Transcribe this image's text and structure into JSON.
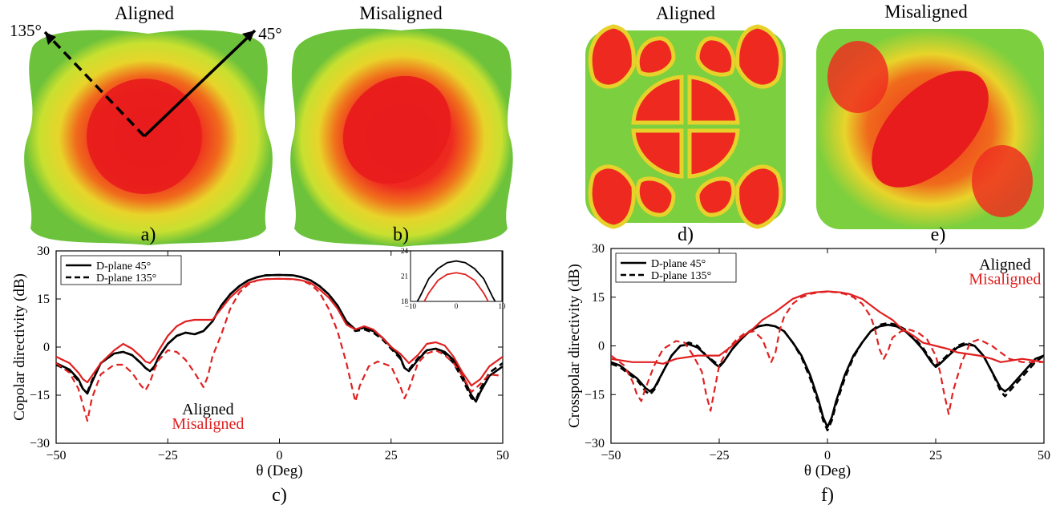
{
  "patterns": [
    {
      "title": "Aligned",
      "label": "a)",
      "annotations": {
        "angle1": "135°",
        "angle2": "45°"
      }
    },
    {
      "title": "Misaligned",
      "label": "b)"
    },
    {
      "title": "Aligned",
      "label": "d)"
    },
    {
      "title": "Misaligned",
      "label": "e)"
    }
  ],
  "colors": {
    "aligned": "#000000",
    "misaligned": "#e02020",
    "pattern_green": "#6cc23a",
    "pattern_yellow": "#e8e830",
    "pattern_red": "#ee2020"
  },
  "chart_data": [
    {
      "type": "line",
      "panel_label": "c)",
      "xlabel": "θ (Deg)",
      "ylabel": "Copolar directivity (dB)",
      "xlim": [
        -50,
        50
      ],
      "ylim": [
        -30,
        30
      ],
      "xticks": [
        -50,
        -25,
        0,
        25,
        50
      ],
      "yticks": [
        30,
        15,
        0,
        -15,
        -30
      ],
      "tick_labels_x": [
        "−50",
        "−25",
        "0",
        "25",
        "50"
      ],
      "tick_labels_y": [
        "30",
        "15",
        "0",
        "−15",
        "−30"
      ],
      "legend": {
        "placement": "top-left",
        "entries": [
          "D-plane 45°",
          "D-plane 135°"
        ]
      },
      "annotations": [
        "Aligned",
        "Misaligned"
      ],
      "series": [
        {
          "name": "D-plane 45°",
          "group": "Aligned",
          "style": "solid",
          "x": [
            -50,
            -47,
            -45,
            -44,
            -43,
            -42,
            -40,
            -37,
            -35,
            -33,
            -31,
            -30,
            -29,
            -28,
            -27,
            -25,
            -23,
            -21,
            -19,
            -17,
            -15,
            -13,
            -11,
            -9,
            -7,
            -5,
            -3,
            0,
            3,
            5,
            7,
            9,
            11,
            13,
            15,
            17,
            19,
            21,
            23,
            25,
            27,
            28,
            29,
            31,
            33,
            35,
            37,
            39,
            41,
            43,
            44,
            45,
            47,
            50
          ],
          "y": [
            -5,
            -7,
            -10,
            -13,
            -14.5,
            -11,
            -5,
            -2,
            -1.5,
            -2.5,
            -5,
            -6.5,
            -7.5,
            -6,
            -3,
            1,
            3.5,
            4.5,
            4,
            5,
            8,
            13,
            16.5,
            19,
            20.8,
            21.8,
            22.4,
            22.5,
            22.4,
            21.8,
            20.8,
            19,
            16.5,
            13,
            8,
            5.5,
            6,
            5,
            3,
            0,
            -3,
            -6.5,
            -7.5,
            -4,
            -1,
            -0.5,
            -1.5,
            -4,
            -9,
            -15,
            -17,
            -14,
            -9,
            -6
          ]
        },
        {
          "name": "D-plane 135°",
          "group": "Aligned",
          "style": "dashed",
          "x": [
            -50,
            -47,
            -45,
            -44,
            -43,
            -42,
            -40,
            -37,
            -35,
            -33,
            -31,
            -30,
            -29,
            -28,
            -27,
            -25,
            -23,
            -21,
            -19,
            -17,
            -15,
            -13,
            -11,
            -9,
            -7,
            -5,
            -3,
            0,
            3,
            5,
            7,
            9,
            11,
            13,
            15,
            17,
            19,
            21,
            23,
            25,
            27,
            28,
            29,
            31,
            33,
            35,
            37,
            39,
            41,
            43,
            44,
            45,
            47,
            50
          ],
          "y": [
            -5.5,
            -7.5,
            -10.5,
            -13,
            -14,
            -10.5,
            -5,
            -2,
            -1.5,
            -2.5,
            -5,
            -6.5,
            -7.5,
            -6.5,
            -3,
            1,
            3.5,
            4.5,
            4,
            5,
            8,
            13,
            16.5,
            19,
            20.8,
            21.8,
            22.4,
            22.5,
            22.4,
            21.8,
            20.8,
            19,
            16.5,
            13,
            7.5,
            5,
            5.5,
            4.5,
            2.5,
            -0.5,
            -3.5,
            -6.5,
            -7,
            -3.5,
            -1,
            -0.5,
            -2,
            -5,
            -10,
            -16,
            -16.5,
            -13,
            -8,
            -5
          ]
        },
        {
          "name": "D-plane 45°",
          "group": "Misaligned",
          "style": "solid",
          "x": [
            -50,
            -47,
            -45,
            -44,
            -43,
            -42,
            -40,
            -37,
            -35,
            -33,
            -31,
            -30,
            -29,
            -28,
            -27,
            -25,
            -23,
            -21,
            -19,
            -17,
            -15,
            -13,
            -11,
            -9,
            -7,
            -5,
            -3,
            0,
            3,
            5,
            7,
            9,
            11,
            13,
            15,
            17,
            19,
            21,
            23,
            25,
            27,
            28,
            29,
            31,
            33,
            35,
            37,
            39,
            41,
            43,
            45,
            47,
            50
          ],
          "y": [
            -3,
            -5,
            -8,
            -10,
            -11,
            -9,
            -5,
            -1,
            1,
            -0.5,
            -3,
            -4.5,
            -5,
            -3.5,
            -1,
            3.5,
            6.5,
            8,
            8.5,
            8.5,
            8.5,
            12,
            15.5,
            18,
            20,
            20.8,
            21.2,
            21.3,
            21.2,
            20.8,
            20,
            18,
            15.5,
            12,
            7,
            5.5,
            6.5,
            5.5,
            3,
            0,
            -2,
            -3.5,
            -5,
            -2.5,
            1,
            1.5,
            0.5,
            -3,
            -8,
            -12,
            -10,
            -6,
            -3
          ]
        },
        {
          "name": "D-plane 135°",
          "group": "Misaligned",
          "style": "dashed",
          "x": [
            -50,
            -47,
            -45,
            -44,
            -43,
            -42,
            -40,
            -37,
            -35,
            -33,
            -31,
            -30,
            -29,
            -28,
            -27,
            -25,
            -23,
            -21,
            -19,
            -17,
            -16,
            -15,
            -13,
            -11,
            -9,
            -7,
            -5,
            -3,
            0,
            3,
            5,
            7,
            9,
            11,
            13,
            15,
            16,
            17,
            18,
            20,
            22,
            25,
            27,
            28,
            29,
            31,
            33,
            35,
            37,
            39,
            41,
            43,
            45,
            47,
            50
          ],
          "y": [
            -5,
            -8,
            -13,
            -18,
            -23,
            -16,
            -8.5,
            -5.5,
            -5.5,
            -8,
            -12,
            -13.5,
            -11,
            -7,
            -4,
            -1,
            -1.5,
            -4,
            -8,
            -12.5,
            -9,
            -3,
            4,
            12,
            17,
            19.5,
            20.8,
            21.2,
            21.3,
            21.2,
            20.8,
            19.5,
            17,
            12,
            5,
            -5,
            -11,
            -17,
            -12,
            -6,
            -4.5,
            -6,
            -12,
            -16,
            -13,
            -5,
            -2,
            -1,
            -2.5,
            -5,
            -9,
            -14,
            -11.5,
            -8.5,
            -9
          ]
        }
      ],
      "inset": {
        "xlim": [
          -10,
          10
        ],
        "ylim": [
          18,
          24
        ],
        "xticks": [
          "−10",
          "0",
          "10"
        ],
        "yticks": [
          "24",
          "21",
          "18"
        ],
        "series": [
          {
            "group": "Aligned",
            "x": [
              -8.5,
              -8,
              -6,
              -4,
              -2,
              0,
              2,
              4,
              6,
              8,
              8.5
            ],
            "y": [
              18,
              18.5,
              20.7,
              21.9,
              22.6,
              22.8,
              22.6,
              21.9,
              20.7,
              18.5,
              18
            ]
          },
          {
            "group": "Misaligned",
            "x": [
              -7,
              -6,
              -4,
              -2,
              0,
              2,
              4,
              6,
              7
            ],
            "y": [
              18,
              19,
              20.5,
              21.2,
              21.4,
              21.2,
              20.5,
              19,
              18
            ]
          }
        ]
      }
    },
    {
      "type": "line",
      "panel_label": "f)",
      "xlabel": "θ (Deg)",
      "ylabel": "Crosspolar directivity (dB)",
      "xlim": [
        -50,
        50
      ],
      "ylim": [
        -30,
        30
      ],
      "xticks": [
        -50,
        -25,
        0,
        25,
        50
      ],
      "yticks": [
        30,
        15,
        0,
        -15,
        -30
      ],
      "tick_labels_x": [
        "−50",
        "−25",
        "0",
        "25",
        "50"
      ],
      "tick_labels_y": [
        "30",
        "15",
        "0",
        "−15",
        "−30"
      ],
      "legend": {
        "placement": "top-left",
        "entries": [
          "D-plane 45°",
          "D-plane 135°"
        ]
      },
      "annotations": [
        "Aligned",
        "Misaligned"
      ],
      "series": [
        {
          "name": "D-plane 45°",
          "group": "Aligned",
          "style": "solid",
          "x": [
            -50,
            -48,
            -46,
            -44,
            -42,
            -41,
            -40,
            -38,
            -36,
            -34,
            -32,
            -30,
            -28,
            -26,
            -25,
            -24,
            -22,
            -20,
            -18,
            -16,
            -14,
            -12,
            -10,
            -8,
            -6,
            -4,
            -2,
            -1,
            0,
            1,
            2,
            4,
            6,
            8,
            10,
            12,
            14,
            16,
            18,
            20,
            22,
            24,
            25,
            26,
            28,
            30,
            32,
            34,
            36,
            38,
            40,
            41,
            42,
            44,
            46,
            48,
            50
          ],
          "y": [
            -5,
            -6,
            -8,
            -10,
            -13,
            -14,
            -13,
            -8,
            -3,
            0,
            0.5,
            -0.5,
            -3,
            -5.5,
            -6.5,
            -5,
            -1,
            2,
            4.5,
            6,
            6.5,
            6,
            4.5,
            1,
            -3,
            -9,
            -17,
            -22,
            -25,
            -22,
            -17,
            -9,
            -3,
            1,
            4.5,
            6,
            6.5,
            6,
            4.5,
            2,
            -1,
            -5,
            -6.5,
            -5.5,
            -3,
            -0.5,
            0.5,
            0,
            -3,
            -8,
            -13,
            -14,
            -13,
            -10,
            -7,
            -4,
            -3
          ]
        },
        {
          "name": "D-plane 135°",
          "group": "Aligned",
          "style": "dashed",
          "x": [
            -50,
            -48,
            -46,
            -44,
            -42,
            -41,
            -40,
            -38,
            -36,
            -34,
            -32,
            -30,
            -28,
            -26,
            -25,
            -24,
            -22,
            -20,
            -18,
            -16,
            -14,
            -12,
            -10,
            -8,
            -6,
            -4,
            -2,
            -1,
            0,
            1,
            2,
            4,
            6,
            8,
            10,
            12,
            14,
            16,
            18,
            20,
            22,
            24,
            25,
            26,
            28,
            30,
            32,
            34,
            36,
            38,
            40,
            41,
            42,
            44,
            46,
            48,
            50
          ],
          "y": [
            -5.5,
            -6.5,
            -8.5,
            -10.5,
            -14,
            -15,
            -13.5,
            -8,
            -3,
            0,
            1,
            0,
            -3,
            -5,
            -6,
            -5,
            -1,
            2,
            4.5,
            6,
            6.5,
            6,
            4.5,
            1,
            -3.5,
            -10,
            -18,
            -23,
            -26,
            -23,
            -18,
            -10,
            -3.5,
            1,
            4.5,
            6.5,
            7,
            6.5,
            5,
            2.5,
            -0.5,
            -4.5,
            -6,
            -5,
            -2.5,
            0,
            1,
            0,
            -3,
            -8,
            -14,
            -15.5,
            -14,
            -11,
            -8,
            -5,
            -3
          ]
        },
        {
          "name": "D-plane 45°",
          "group": "Misaligned",
          "style": "solid",
          "x": [
            -50,
            -45,
            -40,
            -38,
            -35,
            -30,
            -25,
            -22,
            -20,
            -17,
            -15,
            -12,
            -10,
            -8,
            -5,
            -3,
            0,
            3,
            5,
            8,
            10,
            12,
            15,
            17,
            20,
            22,
            25,
            28,
            30,
            35,
            38,
            40,
            45,
            50
          ],
          "y": [
            -4,
            -5,
            -5,
            -5.5,
            -4,
            -3,
            -3,
            0,
            2.5,
            5.5,
            8,
            10.5,
            12.5,
            14.5,
            16,
            16.5,
            16.8,
            16.5,
            16,
            14.5,
            12.5,
            10.5,
            8,
            5.5,
            3,
            1,
            0,
            -1,
            -2,
            -3,
            -4,
            -5,
            -4,
            -5
          ]
        },
        {
          "name": "D-plane 135°",
          "group": "Misaligned",
          "style": "dashed",
          "x": [
            -50,
            -47,
            -45,
            -44,
            -43,
            -42,
            -40,
            -38,
            -35,
            -33,
            -31,
            -29,
            -28,
            -27,
            -26,
            -25,
            -23,
            -21,
            -19,
            -17,
            -15,
            -14,
            -13,
            -12,
            -11,
            -10,
            -8,
            -6,
            -4,
            -2,
            0,
            2,
            4,
            6,
            8,
            10,
            11,
            12,
            13,
            14,
            15,
            17,
            19,
            21,
            23,
            25,
            26,
            27,
            28,
            29,
            31,
            33,
            35,
            38,
            40,
            42,
            45,
            47,
            50
          ],
          "y": [
            -3,
            -6,
            -11,
            -15,
            -17,
            -13,
            -6,
            -1,
            1.5,
            1,
            -3,
            -8,
            -15,
            -20,
            -13,
            -6,
            -1,
            2,
            4,
            4.5,
            2,
            -1.5,
            -5,
            -2,
            5,
            9,
            13,
            15,
            16,
            16.5,
            16.7,
            16.5,
            16,
            15,
            13,
            9,
            5,
            -1,
            -4,
            -1.5,
            2.5,
            4.5,
            5,
            4,
            2,
            -3,
            -8,
            -15,
            -21,
            -14,
            -5,
            1,
            2,
            0,
            -2,
            -4,
            -5,
            -5,
            -5
          ]
        }
      ]
    }
  ]
}
